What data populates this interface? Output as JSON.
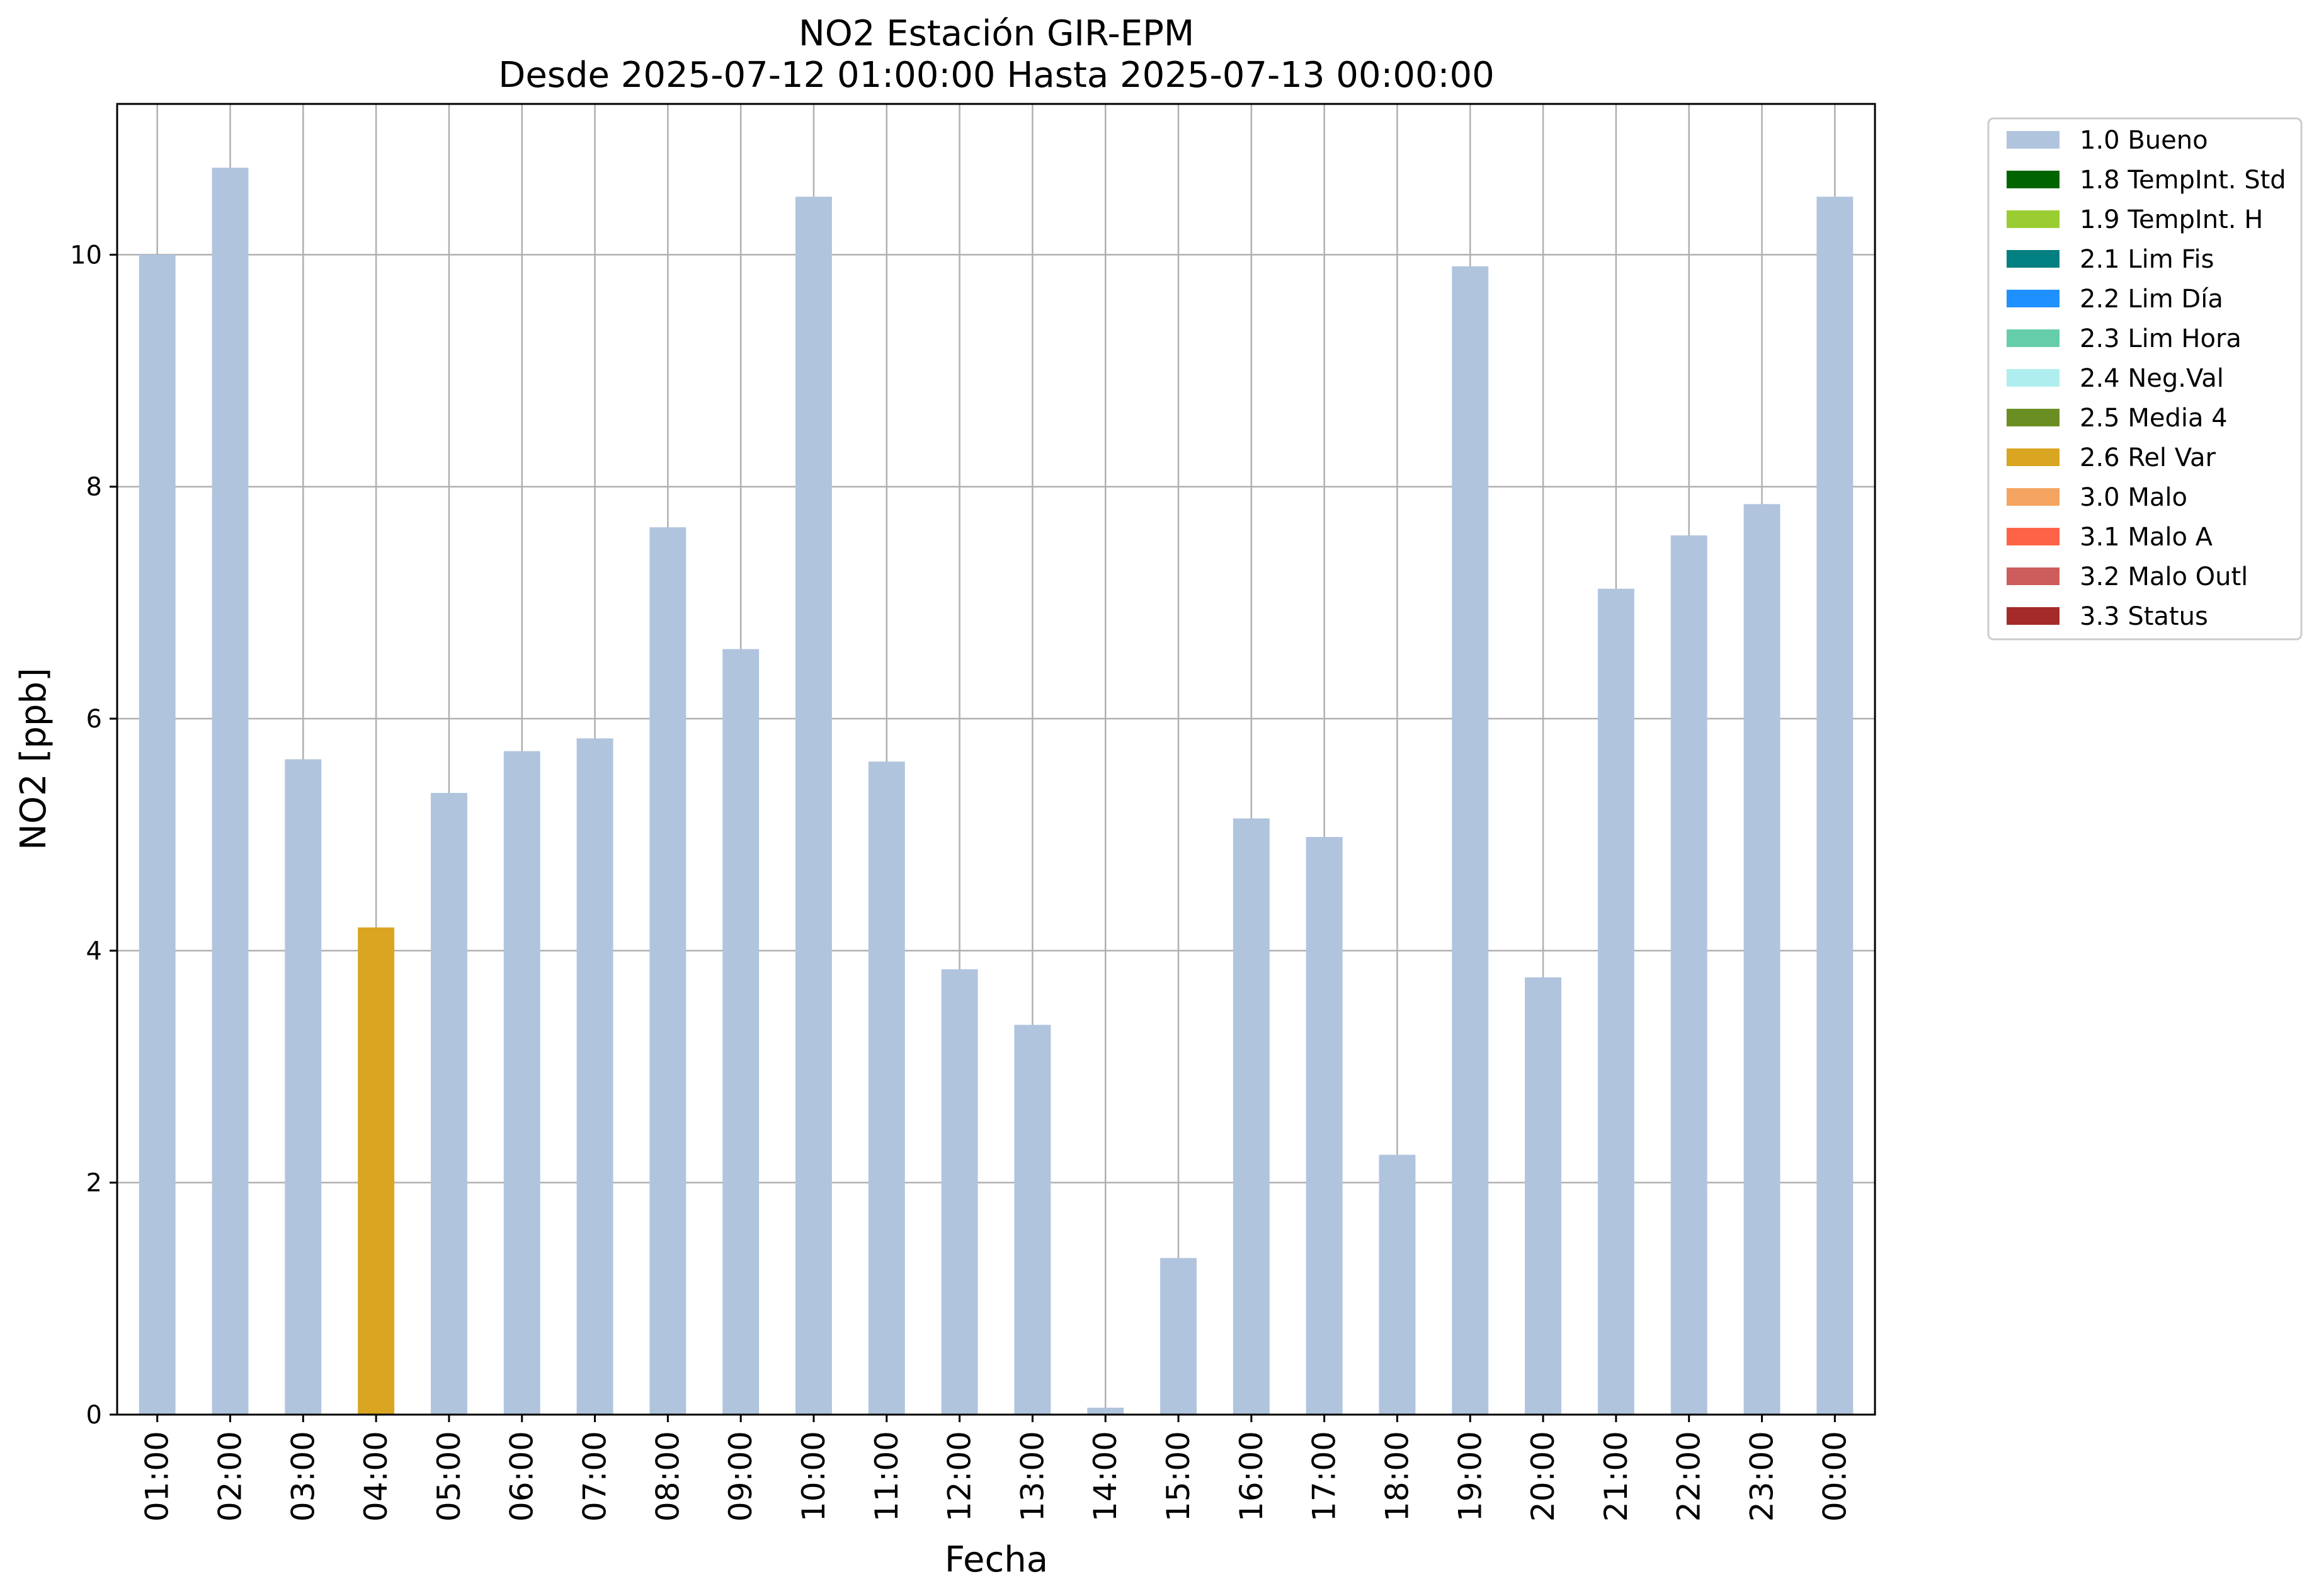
{
  "chart_data": {
    "type": "bar",
    "title": "NO2 Estación GIR-EPM",
    "subtitle": "Desde 2025-07-12 01:00:00 Hasta 2025-07-13 00:00:00",
    "xlabel": "Fecha",
    "ylabel": "NO2 [ppb]",
    "ylim": [
      0,
      11.3
    ],
    "yticks": [
      "0",
      "2",
      "4",
      "6",
      "8",
      "10"
    ],
    "grid": true,
    "legend_position": "outside-right-top",
    "categories": [
      "01:00",
      "02:00",
      "03:00",
      "04:00",
      "05:00",
      "06:00",
      "07:00",
      "08:00",
      "09:00",
      "10:00",
      "11:00",
      "12:00",
      "13:00",
      "14:00",
      "15:00",
      "16:00",
      "17:00",
      "18:00",
      "19:00",
      "20:00",
      "21:00",
      "22:00",
      "23:00",
      "00:00"
    ],
    "values": [
      10.0,
      10.75,
      5.65,
      4.2,
      5.36,
      5.72,
      5.83,
      7.65,
      6.6,
      10.5,
      5.63,
      3.84,
      3.36,
      0.06,
      1.35,
      5.14,
      4.98,
      2.24,
      9.9,
      3.77,
      7.12,
      7.58,
      7.85,
      10.5
    ],
    "flags": [
      "1.0 Bueno",
      "1.0 Bueno",
      "1.0 Bueno",
      "2.6 Rel Var",
      "1.0 Bueno",
      "1.0 Bueno",
      "1.0 Bueno",
      "1.0 Bueno",
      "1.0 Bueno",
      "1.0 Bueno",
      "1.0 Bueno",
      "1.0 Bueno",
      "1.0 Bueno",
      "1.0 Bueno",
      "1.0 Bueno",
      "1.0 Bueno",
      "1.0 Bueno",
      "1.0 Bueno",
      "1.0 Bueno",
      "1.0 Bueno",
      "1.0 Bueno",
      "1.0 Bueno",
      "1.0 Bueno",
      "1.0 Bueno"
    ],
    "legend": [
      {
        "label": "1.0 Bueno",
        "color": "#b0c4de"
      },
      {
        "label": "1.8 TempInt. Std",
        "color": "#006400"
      },
      {
        "label": "1.9 TempInt. H",
        "color": "#9acd32"
      },
      {
        "label": "2.1 Lim Fis",
        "color": "#008080"
      },
      {
        "label": "2.2 Lim Día",
        "color": "#1e90ff"
      },
      {
        "label": "2.3 Lim Hora",
        "color": "#66cdaa"
      },
      {
        "label": "2.4 Neg.Val",
        "color": "#afeeee"
      },
      {
        "label": "2.5 Media 4",
        "color": "#6b8e23"
      },
      {
        "label": "2.6 Rel Var",
        "color": "#daa520"
      },
      {
        "label": "3.0 Malo",
        "color": "#f4a460"
      },
      {
        "label": "3.1 Malo A",
        "color": "#ff6347"
      },
      {
        "label": "3.2 Malo Outl",
        "color": "#cd5c5c"
      },
      {
        "label": "3.3 Status",
        "color": "#a52a2a"
      }
    ]
  }
}
